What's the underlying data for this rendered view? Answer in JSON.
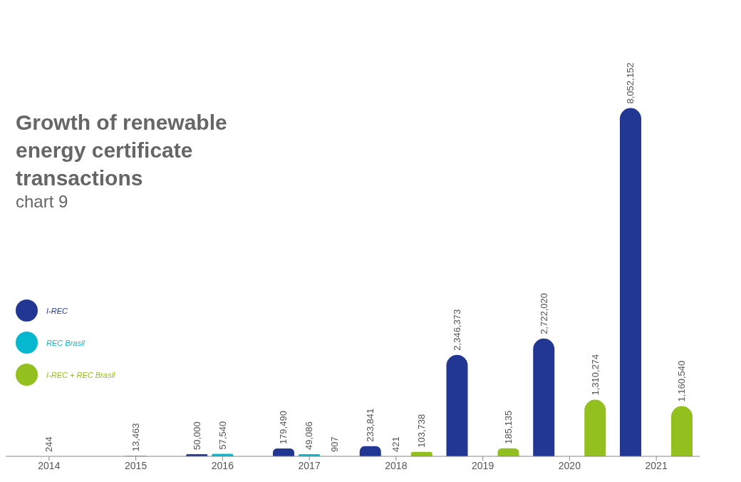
{
  "chart_data": {
    "type": "bar",
    "title": "Growth of renewable energy certificate transactions",
    "subtitle": "chart 9",
    "categories": [
      "2014",
      "2015",
      "2016",
      "2017",
      "2018",
      "2019",
      "2020",
      "2021"
    ],
    "series": [
      {
        "name": "I-REC",
        "color": "#213793",
        "values": [
          null,
          null,
          50000,
          179490,
          233841,
          2346373,
          2722020,
          8052152
        ],
        "value_labels": [
          null,
          null,
          "50,000",
          "179,490",
          "233,841",
          "2,346,373",
          "2,722,020",
          "8,052,152"
        ]
      },
      {
        "name": "REC Brasil",
        "color": "#06b8cf",
        "values": [
          244,
          13463,
          57540,
          49086,
          421,
          null,
          null,
          null
        ],
        "value_labels": [
          "244",
          "13,463",
          "57,540",
          "49,086",
          "421",
          null,
          null,
          null
        ]
      },
      {
        "name": "I-REC + REC Brasil",
        "color": "#93c01f",
        "values": [
          null,
          null,
          null,
          907,
          103738,
          185135,
          1310274,
          1160540
        ],
        "value_labels": [
          null,
          null,
          null,
          "907",
          "103,738",
          "185,135",
          "1,310,274",
          "1,160,540"
        ]
      }
    ],
    "legend": "left",
    "grid": false
  }
}
